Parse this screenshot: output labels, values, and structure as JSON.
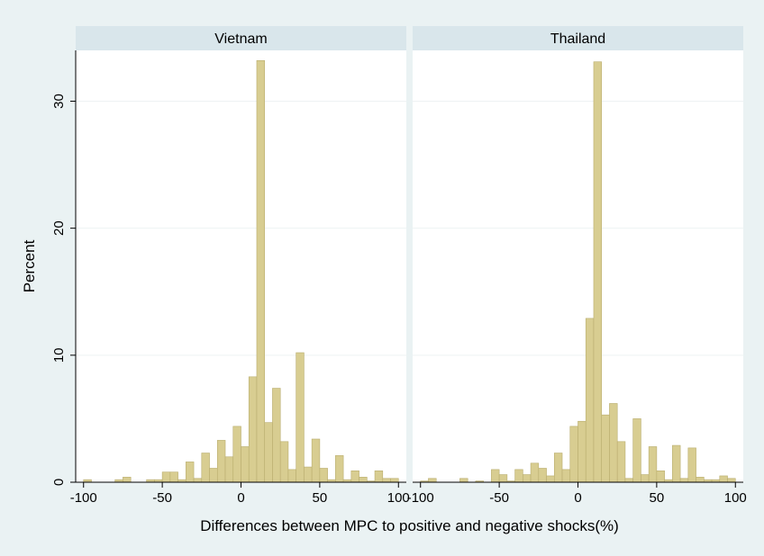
{
  "colors": {
    "background": "#eaf2f3",
    "panel_background": "#ffffff",
    "strip_background": "#d9e6eb",
    "bar_fill": "#d8cd91",
    "bar_stroke": "#b9ad6e",
    "grid": "#eef2f3",
    "axis": "#000000"
  },
  "chart_data": {
    "type": "bar",
    "xlabel": "Differences between MPC to positive and negative shocks(%)",
    "ylabel": "Percent",
    "xlim": [
      -105,
      105
    ],
    "ylim": [
      0,
      34
    ],
    "xticks": [
      -100,
      -50,
      0,
      50,
      100
    ],
    "yticks": [
      0,
      10,
      20,
      30
    ],
    "grid": true,
    "bin_width": 5,
    "panels": [
      {
        "name": "Vietnam",
        "bins": [
          {
            "x": -97.5,
            "y": 0.2
          },
          {
            "x": -77.5,
            "y": 0.2
          },
          {
            "x": -72.5,
            "y": 0.4
          },
          {
            "x": -57.5,
            "y": 0.2
          },
          {
            "x": -52.5,
            "y": 0.2
          },
          {
            "x": -47.5,
            "y": 0.8
          },
          {
            "x": -42.5,
            "y": 0.8
          },
          {
            "x": -37.5,
            "y": 0.2
          },
          {
            "x": -32.5,
            "y": 1.6
          },
          {
            "x": -27.5,
            "y": 0.3
          },
          {
            "x": -22.5,
            "y": 2.3
          },
          {
            "x": -17.5,
            "y": 1.1
          },
          {
            "x": -12.5,
            "y": 3.3
          },
          {
            "x": -7.5,
            "y": 2.0
          },
          {
            "x": -2.5,
            "y": 4.4
          },
          {
            "x": 2.5,
            "y": 2.8
          },
          {
            "x": 7.5,
            "y": 8.3
          },
          {
            "x": 12.5,
            "y": 33.2
          },
          {
            "x": 17.5,
            "y": 4.7
          },
          {
            "x": 22.5,
            "y": 7.4
          },
          {
            "x": 27.5,
            "y": 3.2
          },
          {
            "x": 32.5,
            "y": 1.0
          },
          {
            "x": 37.5,
            "y": 10.2
          },
          {
            "x": 42.5,
            "y": 1.2
          },
          {
            "x": 47.5,
            "y": 3.4
          },
          {
            "x": 52.5,
            "y": 1.1
          },
          {
            "x": 57.5,
            "y": 0.2
          },
          {
            "x": 62.5,
            "y": 2.1
          },
          {
            "x": 67.5,
            "y": 0.2
          },
          {
            "x": 72.5,
            "y": 0.9
          },
          {
            "x": 77.5,
            "y": 0.4
          },
          {
            "x": 82.5,
            "y": 0.1
          },
          {
            "x": 87.5,
            "y": 0.9
          },
          {
            "x": 92.5,
            "y": 0.3
          },
          {
            "x": 97.5,
            "y": 0.3
          }
        ]
      },
      {
        "name": "Thailand",
        "bins": [
          {
            "x": -97.5,
            "y": 0.1
          },
          {
            "x": -92.5,
            "y": 0.3
          },
          {
            "x": -72.5,
            "y": 0.3
          },
          {
            "x": -62.5,
            "y": 0.1
          },
          {
            "x": -52.5,
            "y": 1.0
          },
          {
            "x": -47.5,
            "y": 0.6
          },
          {
            "x": -42.5,
            "y": 0.1
          },
          {
            "x": -37.5,
            "y": 1.0
          },
          {
            "x": -32.5,
            "y": 0.6
          },
          {
            "x": -27.5,
            "y": 1.5
          },
          {
            "x": -22.5,
            "y": 1.1
          },
          {
            "x": -17.5,
            "y": 0.5
          },
          {
            "x": -12.5,
            "y": 2.3
          },
          {
            "x": -7.5,
            "y": 1.0
          },
          {
            "x": -2.5,
            "y": 4.4
          },
          {
            "x": 2.5,
            "y": 4.8
          },
          {
            "x": 7.5,
            "y": 12.9
          },
          {
            "x": 12.5,
            "y": 33.1
          },
          {
            "x": 17.5,
            "y": 5.3
          },
          {
            "x": 22.5,
            "y": 6.2
          },
          {
            "x": 27.5,
            "y": 3.2
          },
          {
            "x": 32.5,
            "y": 0.3
          },
          {
            "x": 37.5,
            "y": 5.0
          },
          {
            "x": 42.5,
            "y": 0.6
          },
          {
            "x": 47.5,
            "y": 2.8
          },
          {
            "x": 52.5,
            "y": 0.9
          },
          {
            "x": 57.5,
            "y": 0.2
          },
          {
            "x": 62.5,
            "y": 2.9
          },
          {
            "x": 67.5,
            "y": 0.3
          },
          {
            "x": 72.5,
            "y": 2.7
          },
          {
            "x": 77.5,
            "y": 0.4
          },
          {
            "x": 82.5,
            "y": 0.2
          },
          {
            "x": 87.5,
            "y": 0.2
          },
          {
            "x": 92.5,
            "y": 0.5
          },
          {
            "x": 97.5,
            "y": 0.3
          }
        ]
      }
    ]
  }
}
